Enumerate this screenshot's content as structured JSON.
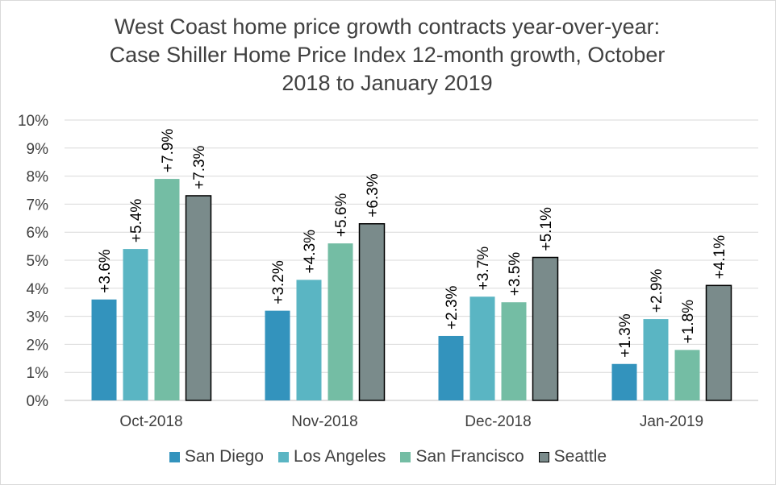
{
  "title_lines": [
    "West Coast home price growth contracts year-over-year:",
    "Case Shiller Home Price Index 12-month growth, October",
    "2018 to January 2019"
  ],
  "chart_data": {
    "type": "bar",
    "title": "West Coast home price growth contracts year-over-year: Case Shiller Home Price Index 12-month growth, October 2018 to January 2019",
    "categories": [
      "Oct-2018",
      "Nov-2018",
      "Dec-2018",
      "Jan-2019"
    ],
    "series": [
      {
        "name": "San Diego",
        "values": [
          3.6,
          3.2,
          2.3,
          1.3
        ],
        "labels": [
          "+3.6%",
          "+3.2%",
          "+2.3%",
          "+1.3%"
        ],
        "color": "#3393bd"
      },
      {
        "name": "Los Angeles",
        "values": [
          5.4,
          4.3,
          3.7,
          2.9
        ],
        "labels": [
          "+5.4%",
          "+4.3%",
          "+3.7%",
          "+2.9%"
        ],
        "color": "#5ab5c3"
      },
      {
        "name": "San Francisco",
        "values": [
          7.9,
          5.6,
          3.5,
          1.8
        ],
        "labels": [
          "+7.9%",
          "+5.6%",
          "+3.5%",
          "+1.8%"
        ],
        "color": "#74bda4"
      },
      {
        "name": "Seattle",
        "values": [
          7.3,
          6.3,
          5.1,
          4.1
        ],
        "labels": [
          "+7.3%",
          "+6.3%",
          "+5.1%",
          "+4.1%"
        ],
        "color": "#7a8b8b",
        "outline": "#000000"
      }
    ],
    "ylim": [
      0,
      10
    ],
    "yticks": [
      "0%",
      "1%",
      "2%",
      "3%",
      "4%",
      "5%",
      "6%",
      "7%",
      "8%",
      "9%",
      "10%"
    ],
    "xlabel": "",
    "ylabel": "",
    "grid": true,
    "legend": "bottom"
  }
}
